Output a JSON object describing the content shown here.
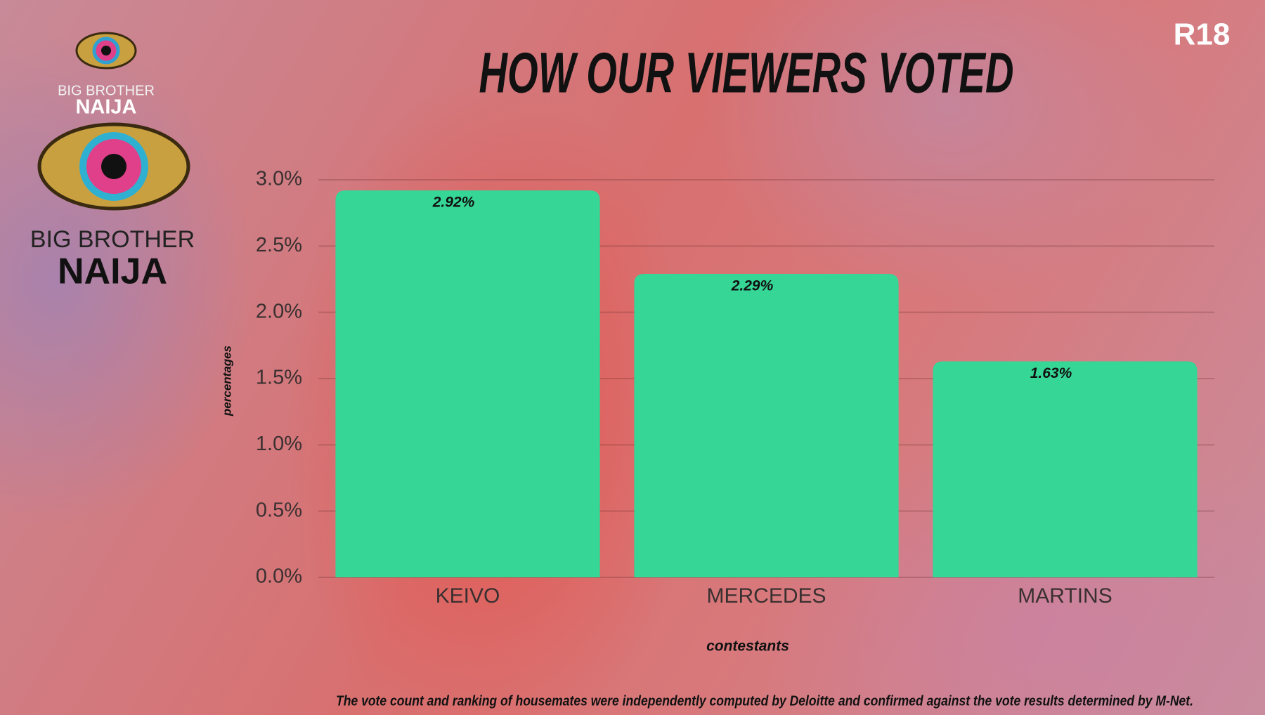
{
  "rating": "R18",
  "logo_small": {
    "line1": "BIG BROTHER",
    "line2": "NAIJA"
  },
  "logo_large": {
    "line1": "BIG BROTHER",
    "line2": "NAIJA"
  },
  "footnote": "The vote count and ranking of housemates were independently computed by Deloitte and confirmed against the vote results determined by M-Net.",
  "chart_data": {
    "type": "bar",
    "title": "HOW OUR VIEWERS VOTED",
    "x_label": "contestants",
    "y_label": "percentages",
    "categories": [
      "KEIVO",
      "MERCEDES",
      "MARTINS"
    ],
    "values": [
      2.92,
      2.29,
      1.63
    ],
    "value_labels": [
      "2.92%",
      "2.29%",
      "1.63%"
    ],
    "color": "#36d696",
    "ylim": [
      0,
      3
    ],
    "yticks": [
      {
        "value": 0,
        "label": "0.0%"
      },
      {
        "value": 0.5,
        "label": "0.5%"
      },
      {
        "value": 1,
        "label": "1.0%"
      },
      {
        "value": 1.5,
        "label": "1.5%"
      },
      {
        "value": 2,
        "label": "2.0%"
      },
      {
        "value": 2.5,
        "label": "2.5%"
      },
      {
        "value": 3,
        "label": "3.0%"
      }
    ],
    "grid": true
  }
}
